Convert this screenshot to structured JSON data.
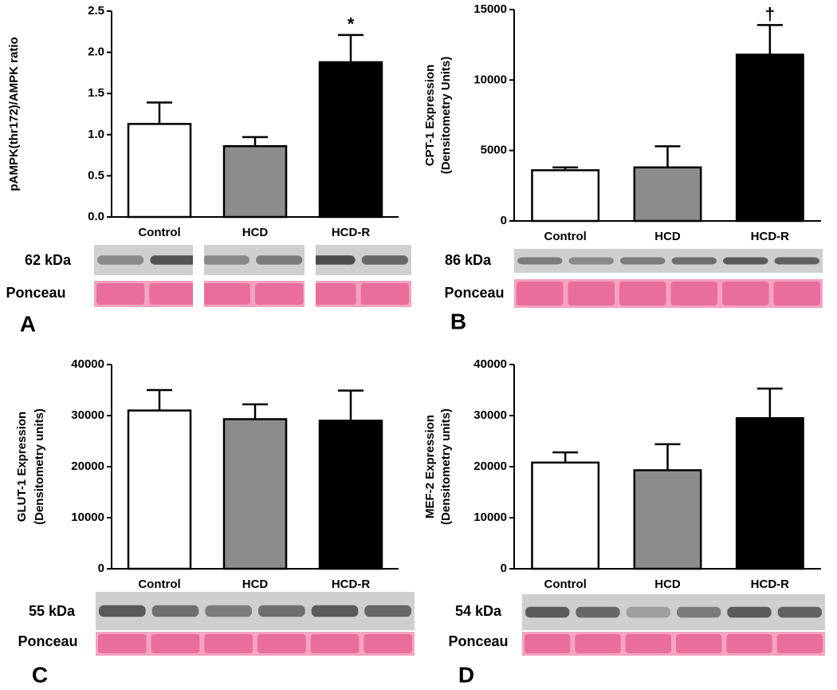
{
  "chart_data": [
    {
      "type": "bar",
      "panel": "A",
      "y_label": [
        "pAMPK(thr172)/AMPK ratio"
      ],
      "categories": [
        "Control",
        "HCD",
        "HCD-R"
      ],
      "values": [
        1.13,
        0.86,
        1.88
      ],
      "errors": [
        0.26,
        0.11,
        0.33
      ],
      "colors": [
        "#ffffff",
        "#8c8c8c",
        "#000000"
      ],
      "significance": [
        null,
        null,
        "*"
      ],
      "ylim": [
        0,
        2.5
      ],
      "yticks": [
        {
          "value": 0,
          "label": "0.0"
        },
        0.5,
        {
          "value": 1,
          "label": "1.0"
        },
        1.5,
        {
          "value": 2,
          "label": "2.0"
        },
        2.5
      ],
      "blot_label": "62 kDa",
      "loading_label": "Ponceau"
    },
    {
      "type": "bar",
      "panel": "B",
      "y_label": [
        "CPT-1 Expression",
        "(Densitometry Units)"
      ],
      "categories": [
        "Control",
        "HCD",
        "HCD-R"
      ],
      "values": [
        3600,
        3800,
        11800
      ],
      "errors": [
        200,
        1500,
        2100
      ],
      "colors": [
        "#ffffff",
        "#8c8c8c",
        "#000000"
      ],
      "significance": [
        null,
        null,
        "†"
      ],
      "ylim": [
        0,
        15000
      ],
      "yticks": [
        0,
        5000,
        10000,
        15000
      ],
      "blot_label": "86 kDa",
      "loading_label": "Ponceau"
    },
    {
      "type": "bar",
      "panel": "C",
      "y_label": [
        "GLUT-1 Expression",
        "(Densitometry units)"
      ],
      "categories": [
        "Control",
        "HCD",
        "HCD-R"
      ],
      "values": [
        31000,
        29300,
        29000
      ],
      "errors": [
        4000,
        2900,
        5900
      ],
      "colors": [
        "#ffffff",
        "#8c8c8c",
        "#000000"
      ],
      "ylim": [
        0,
        40000
      ],
      "yticks": [
        0,
        10000,
        20000,
        30000,
        40000
      ],
      "blot_label": "55 kDa",
      "loading_label": "Ponceau"
    },
    {
      "type": "bar",
      "panel": "D",
      "y_label": [
        "MEF-2 Expression",
        "(Densitometry units)"
      ],
      "categories": [
        "Control",
        "HCD",
        "HCD-R"
      ],
      "values": [
        20800,
        19300,
        29500
      ],
      "errors": [
        2000,
        5100,
        5800
      ],
      "colors": [
        "#ffffff",
        "#8c8c8c",
        "#000000"
      ],
      "ylim": [
        0,
        40000
      ],
      "yticks": [
        0,
        10000,
        20000,
        30000,
        40000
      ],
      "blot_label": "54 kDa",
      "loading_label": "Ponceau"
    }
  ]
}
